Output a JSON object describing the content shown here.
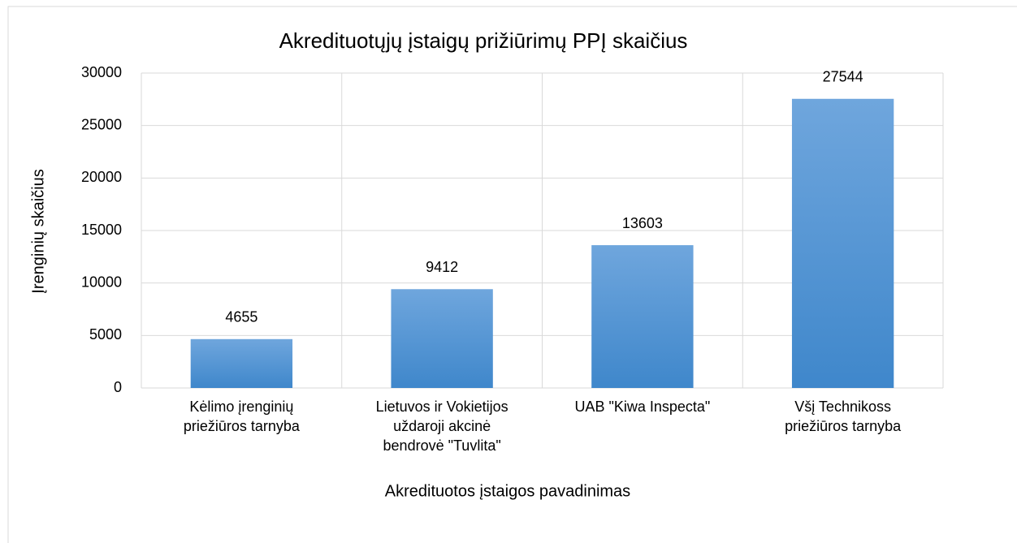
{
  "chart_data": {
    "type": "bar",
    "title": "Akredituotųjų įstaigų prižiūrimų PPĮ skaičius",
    "x_label": "Akredituotos įstaigos pavadinimas",
    "y_label": "Įrenginių skaičius",
    "categories": [
      "Kėlimo įrenginių\npriežiūros tarnyba",
      "Lietuvos ir Vokietijos\nuždaroji akcinė\nbendrovė \"Tuvlita\"",
      "UAB \"Kiwa Inspecta\"",
      "Všį Technikoss\npriežiūros tarnyba"
    ],
    "values": [
      4655,
      9412,
      13603,
      27544
    ],
    "color": "#5b9bd5",
    "ylim": [
      0,
      30000
    ],
    "yticks": [
      0,
      5000,
      10000,
      15000,
      20000,
      25000,
      30000
    ],
    "grid": true
  }
}
